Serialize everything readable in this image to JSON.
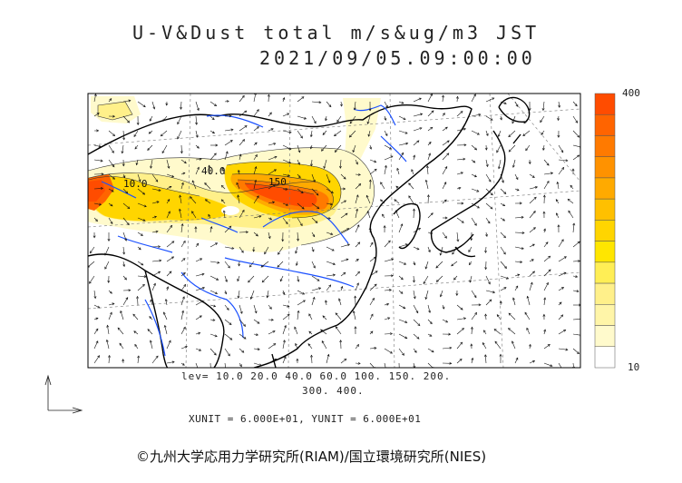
{
  "header": {
    "title": "U-V&Dust total m/s&ug/m3 JST",
    "datetime": "2021/09/05.09:00:00"
  },
  "map": {
    "contour_labels": [
      "10.0",
      "40.0",
      "150"
    ]
  },
  "legend": {
    "levels_line1": "lev= 10.0 20.0 40.0 60.0 100. 150. 200.",
    "levels_line2": "300. 400.",
    "units_text": "XUNIT = 6.000E+01, YUNIT = 6.000E+01",
    "colorbar_max": "400",
    "colorbar_min": "10",
    "colorbar_colors": [
      "#ffffff",
      "#fffacc",
      "#fff5a8",
      "#fff08a",
      "#ffee55",
      "#ffe600",
      "#ffd500",
      "#ffc000",
      "#ffaa00",
      "#ff9200",
      "#ff7a00",
      "#ff6400",
      "#ff4c00"
    ]
  },
  "footer": {
    "copyright": "©九州大学応用力学研究所(RIAM)/国立環境研究所(NIES)"
  }
}
